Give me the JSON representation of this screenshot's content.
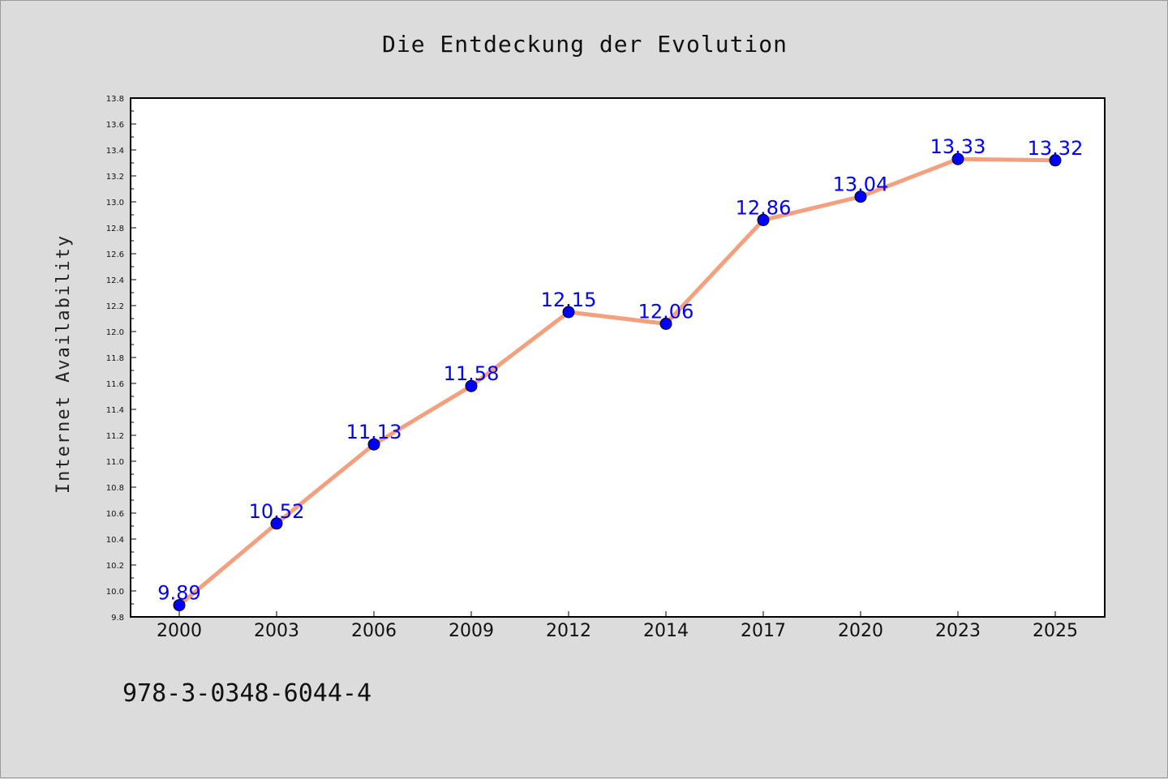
{
  "chart_data": {
    "type": "line",
    "title": "Die Entdeckung der Evolution",
    "xlabel": "",
    "ylabel": "Internet Availability",
    "categories": [
      "2000",
      "2003",
      "2006",
      "2009",
      "2012",
      "2014",
      "2017",
      "2020",
      "2023",
      "2025"
    ],
    "series": [
      {
        "values": [
          9.89,
          10.52,
          11.13,
          11.58,
          12.15,
          12.06,
          12.86,
          13.04,
          13.33,
          13.32
        ],
        "data_labels": [
          "9.89",
          "10.52",
          "11.13",
          "11.58",
          "12.15",
          "12.06",
          "12.86",
          "13.04",
          "13.33",
          "13.32"
        ]
      }
    ],
    "ylim": [
      9.8,
      13.8
    ],
    "yticks": [
      "9.8",
      "10.0",
      "10.2",
      "10.4",
      "10.6",
      "10.8",
      "11.0",
      "11.2",
      "11.4",
      "11.6",
      "11.8",
      "12.0",
      "12.2",
      "12.4",
      "12.6",
      "12.8",
      "13.0",
      "13.2",
      "13.4",
      "13.6",
      "13.8"
    ],
    "grid": false,
    "legend": "none",
    "colors": {
      "line": "#f4a07f",
      "marker": "#0000ff",
      "data_label": "#0000ff",
      "plot_background": "#ffffff",
      "figure_background": "#dcdcdc"
    }
  },
  "footer": {
    "isbn": "978-3-0348-6044-4"
  }
}
